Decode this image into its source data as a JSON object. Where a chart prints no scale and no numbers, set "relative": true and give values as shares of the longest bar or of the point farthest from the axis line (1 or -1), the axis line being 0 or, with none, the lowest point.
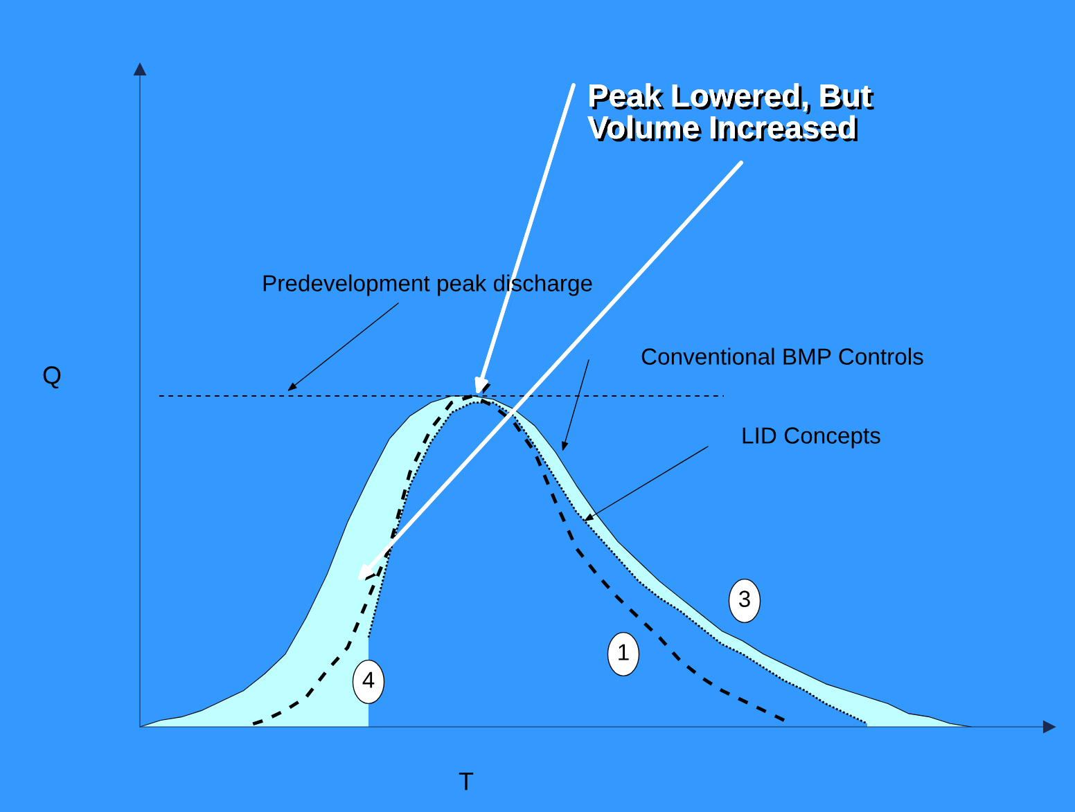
{
  "chart_data": {
    "type": "line",
    "relative": true,
    "xlabel": "T",
    "ylabel": "Q",
    "categories": [
      null,
      null,
      null,
      null,
      null,
      null,
      null,
      null,
      null,
      null,
      null,
      null,
      null,
      null,
      null,
      null,
      null,
      null,
      null,
      null,
      null,
      null,
      null,
      null,
      null,
      null,
      null,
      null,
      null,
      null,
      null,
      null,
      null,
      null,
      null,
      null,
      null,
      null,
      null,
      null,
      null
    ],
    "series": [
      {
        "type": "area",
        "color": "#c0ffff",
        "values": [
          0,
          0.02,
          0.03,
          0.05,
          0.08,
          0.11,
          0.16,
          0.22,
          0.33,
          0.46,
          0.62,
          0.75,
          0.87,
          0.94,
          0.98,
          1.0,
          1.0,
          0.99,
          0.96,
          0.91,
          0.83,
          0.73,
          0.64,
          0.56,
          0.5,
          0.44,
          0.39,
          0.34,
          0.29,
          0.26,
          0.22,
          0.19,
          0.16,
          0.13,
          0.11,
          0.09,
          0.07,
          0.04,
          0.03,
          0.01,
          0
        ]
      },
      {
        "type": "area",
        "color": "#3399ff",
        "line_style": "dotted",
        "values": [
          null,
          null,
          null,
          null,
          null,
          null,
          null,
          null,
          null,
          null,
          null,
          0.27,
          0.52,
          0.73,
          0.86,
          0.95,
          0.98,
          0.98,
          0.94,
          0.85,
          0.75,
          0.65,
          0.58,
          0.51,
          0.44,
          0.39,
          0.35,
          0.3,
          0.25,
          0.22,
          0.18,
          0.14,
          0.11,
          0.07,
          0.04,
          0.01,
          null,
          null,
          null,
          null,
          null
        ]
      },
      {
        "color": "#000000",
        "line_style": "dashed",
        "values": [
          null,
          null,
          null,
          null,
          null,
          0.0,
          0.02,
          0.05,
          0.09,
          0.17,
          0.24,
          0.39,
          0.54,
          0.77,
          0.9,
          0.98,
          1.0,
          0.97,
          0.92,
          0.83,
          0.68,
          0.54,
          0.46,
          0.39,
          0.33,
          0.27,
          0.2,
          0.15,
          0.11,
          0.08,
          0.05,
          0.02,
          null,
          null,
          null,
          null,
          null,
          null,
          null,
          null,
          null
        ]
      }
    ],
    "ref_lines": [
      {
        "axis": "y",
        "value": 1.0,
        "color": "#000000",
        "line_style": "dashed"
      }
    ],
    "annotations": [
      "Predevelopment peak discharge",
      "Conventional BMP Controls",
      "LID Concepts",
      "Peak Lowered, But\nVolume Increased",
      "1",
      "3",
      "4"
    ]
  }
}
